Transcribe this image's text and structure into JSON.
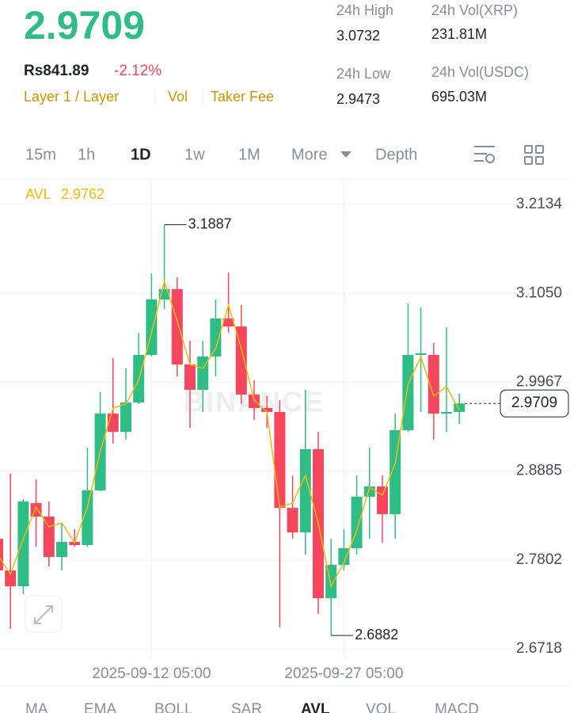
{
  "header": {
    "price": "2.9709",
    "fiat_price": "Rs841.89",
    "change": "-2.12%",
    "tags": [
      "Layer 1 / Layer",
      "Vol",
      "Taker Fee"
    ],
    "stats": [
      {
        "label": "24h High",
        "value": "3.0732"
      },
      {
        "label": "24h Vol(XRP)",
        "value": "231.81M"
      },
      {
        "label": "24h Low",
        "value": "2.9473"
      },
      {
        "label": "24h Vol(USDC)",
        "value": "695.03M"
      }
    ]
  },
  "tabs": [
    "15m",
    "1h",
    "1D",
    "1w",
    "1M",
    "More",
    "Depth"
  ],
  "indicators": [
    "MA",
    "EMA",
    "BOLL",
    "SAR",
    "AVL",
    "VOL",
    "MACD"
  ],
  "watermark": "BINANCE",
  "chart_data": {
    "type": "candlestick",
    "categories": [
      null,
      null,
      null,
      null,
      null,
      null,
      null,
      null,
      null,
      null,
      null,
      null,
      "2025-09-12 05:00",
      null,
      null,
      null,
      null,
      null,
      null,
      null,
      null,
      null,
      null,
      null,
      null,
      null,
      null,
      "2025-09-27 05:00",
      null,
      null,
      null,
      null,
      null,
      null,
      null,
      null,
      null
    ],
    "open": [
      2.806,
      2.7674,
      2.7481,
      2.8494,
      2.833,
      2.7838,
      2.8021,
      2.7983,
      2.8649,
      2.9585,
      2.9363,
      2.972,
      3.03,
      3.0976,
      3.1101,
      3.0184,
      2.9875,
      3.028,
      3.0744,
      3.0647,
      2.9817,
      2.9653,
      2.9605,
      2.8436,
      2.8137,
      2.9151,
      2.7336,
      2.7741,
      2.7944,
      2.8572,
      2.8697,
      2.8359,
      2.9383,
      3.03,
      3.03,
      2.9585,
      2.9605
    ],
    "high": [
      2.8253,
      2.8852,
      2.8543,
      2.8784,
      2.8514,
      2.8253,
      2.8176,
      2.917,
      2.9846,
      3.0261,
      3.0136,
      3.057,
      3.1294,
      3.1887,
      3.1246,
      3.0474,
      3.0474,
      3.0976,
      3.1304,
      3.0908,
      2.9991,
      2.9798,
      2.9749,
      2.8832,
      2.9875,
      2.9363,
      2.806,
      2.8176,
      2.8832,
      2.917,
      2.8832,
      2.9585,
      3.0927,
      3.0879,
      3.0445,
      3.0638,
      2.9827
    ],
    "low": [
      2.7577,
      2.6965,
      2.7384,
      2.7963,
      2.7722,
      2.7674,
      2.7963,
      2.7963,
      2.8639,
      2.9218,
      2.9267,
      2.97,
      3.028,
      3.086,
      3.0039,
      2.9412,
      2.9605,
      3.0039,
      3.057,
      2.9701,
      2.9508,
      2.9412,
      2.698,
      2.806,
      2.7867,
      2.7143,
      2.6882,
      2.7674,
      2.7867,
      2.806,
      2.8012,
      2.806,
      2.9363,
      2.9605,
      2.9267,
      2.9363,
      2.946
    ],
    "close": [
      2.7674,
      2.7481,
      2.8514,
      2.833,
      2.7838,
      2.8021,
      2.7983,
      2.8649,
      2.9585,
      2.9363,
      2.972,
      3.03,
      3.0976,
      3.1101,
      3.0184,
      2.9875,
      3.028,
      3.0744,
      3.0647,
      2.9817,
      2.9653,
      2.9605,
      2.8436,
      2.8137,
      2.9151,
      2.7336,
      2.7741,
      2.7944,
      2.8572,
      2.8697,
      2.8359,
      2.9383,
      3.03,
      3.032,
      2.9585,
      2.9605,
      2.9709
    ],
    "up_color": "#2ebd85",
    "down_color": "#f6465d",
    "avl": {
      "name": "AVL",
      "value": 2.9762,
      "color": "#f0b90b",
      "values": [
        2.7867,
        2.7626,
        2.806,
        2.8446,
        2.8205,
        2.8253,
        2.8012,
        2.8446,
        2.9122,
        2.9653,
        2.9701,
        2.9991,
        3.057,
        3.1198,
        3.0715,
        3.0184,
        3.0136,
        3.0377,
        3.0908,
        3.0377,
        2.9749,
        2.9605,
        2.8446,
        2.8494,
        2.8832,
        2.8253,
        2.7481,
        2.777,
        2.8157,
        2.8687,
        2.8591,
        2.8977,
        2.9943,
        3.028,
        2.9798,
        2.9914,
        2.9624
      ]
    },
    "ylim": [
      2.6593,
      3.2424
    ],
    "yticks": [
      2.6718,
      2.7802,
      2.8885,
      2.9967,
      {
        "value": 3.105,
        "label": "3.1050"
      },
      3.2134
    ],
    "grid": true
  }
}
